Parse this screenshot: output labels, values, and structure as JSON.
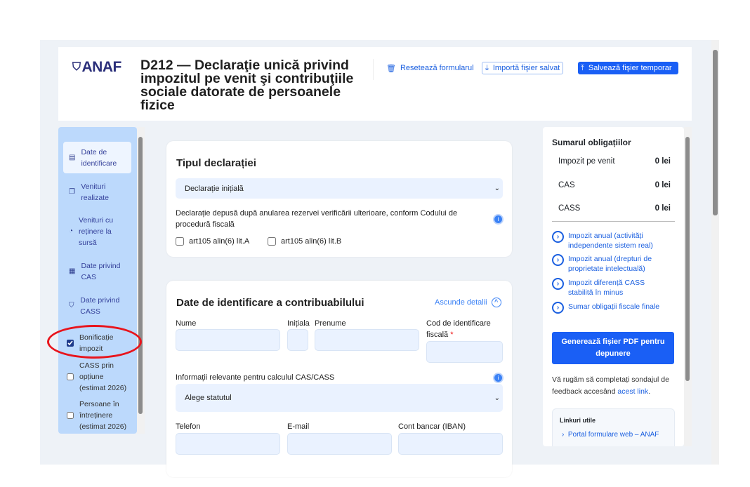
{
  "header": {
    "logo": "ANAF",
    "title": "D212 — Declaraţie unică privind impozitul pe venit şi contribuţiile sociale datorate de persoanele fizice",
    "reset": "Resetează formularul",
    "import": "Importă fişier salvat",
    "save": "Salvează fişier temporar"
  },
  "sidebar": {
    "items": [
      {
        "label": "Date de identificare",
        "icon": "document-icon",
        "active": true
      },
      {
        "label": "Venituri realizate",
        "icon": "copy-icon"
      },
      {
        "label": "Venituri cu reținere la sursă",
        "icon": "coins-icon"
      },
      {
        "label": "Date privind CAS",
        "icon": "calculator-icon"
      },
      {
        "label": "Date privind CASS",
        "icon": "shield-icon"
      },
      {
        "label": "Bonificație impozit",
        "checked": true
      },
      {
        "label": "CASS prin opțiune (estimat 2026)",
        "checked": false
      },
      {
        "label": "Persoane în întreținere (estimat 2026)",
        "checked": false
      }
    ]
  },
  "tip": {
    "title": "Tipul declarației",
    "select": "Declarație inițială",
    "note": "Declarație depusă după anularea rezervei verificării ulterioare, conform Codului de procedură fiscală",
    "cb_a": "art105 alin(6) lit.A",
    "cb_b": "art105 alin(6) lit.B"
  },
  "ident": {
    "title": "Date de identificare a contribuabilului",
    "toggle": "Ascunde detalii",
    "nume": "Nume",
    "initiala": "Inițiala",
    "prenume": "Prenume",
    "cif": "Cod de identificare fiscală",
    "required": "*",
    "info_label": "Informații relevante pentru calculul CAS/CASS",
    "status": "Alege statutul",
    "telefon": "Telefon",
    "email": "E-mail",
    "iban": "Cont bancar (IBAN)"
  },
  "summary": {
    "title": "Sumarul obligațiilor",
    "rows": [
      {
        "label": "Impozit pe venit",
        "value": "0 lei"
      },
      {
        "label": "CAS",
        "value": "0 lei"
      },
      {
        "label": "CASS",
        "value": "0 lei"
      }
    ],
    "links": [
      "Impozit anual (activități independente sistem real)",
      "Impozit anual (drepturi de proprietate intelectuală)",
      "Impozit diferență CASS stabilită în minus",
      "Sumar obligații fiscale finale"
    ],
    "generate": "Generează fișier PDF pentru depunere",
    "feedback": "Vă rugăm să completați sondajul de feedback accesând ",
    "feedback_link": "acest link",
    "feedback_end": ".",
    "useful_title": "Linkuri utile",
    "useful": [
      "Portal formulare web – ANAF"
    ]
  },
  "colors": {
    "accent": "#1a5ff5",
    "sidebar": "#bcd9fc",
    "annotation": "#e8141c"
  }
}
